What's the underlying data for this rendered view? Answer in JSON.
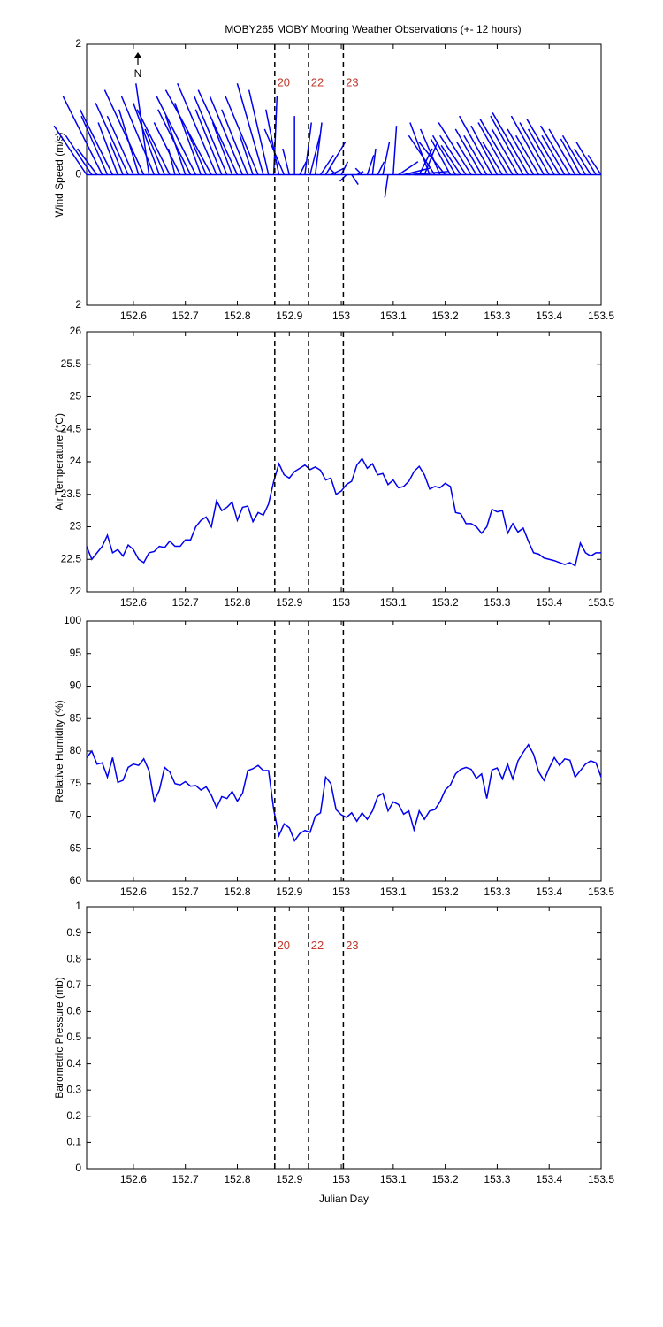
{
  "chart_data": [
    {
      "type": "stick",
      "title": "MOBY265 MOBY Mooring Weather Observations (+- 12 hours)",
      "ylabel": "Wind Speed (m/s)",
      "annotation": "N",
      "color": "#0000ee",
      "xlim": [
        152.51,
        153.5
      ],
      "xticks": [
        152.6,
        152.7,
        152.8,
        152.9,
        153,
        153.1,
        153.2,
        153.3,
        153.4,
        153.5
      ],
      "ylim": [
        -2,
        2
      ],
      "yticks": [
        {
          "value": -2,
          "label": "2"
        },
        0,
        2
      ],
      "vlines": [
        152.872,
        152.937,
        153.004
      ],
      "vline_labels": [
        "20",
        "22",
        "23"
      ],
      "x": [
        152.51,
        152.52,
        152.53,
        152.54,
        152.55,
        152.56,
        152.57,
        152.58,
        152.59,
        152.6,
        152.61,
        152.62,
        152.63,
        152.64,
        152.65,
        152.66,
        152.67,
        152.68,
        152.69,
        152.7,
        152.71,
        152.72,
        152.73,
        152.74,
        152.75,
        152.76,
        152.77,
        152.78,
        152.79,
        152.8,
        152.81,
        152.82,
        152.83,
        152.84,
        152.85,
        152.86,
        152.87,
        152.88,
        152.89,
        152.9,
        152.91,
        152.92,
        152.93,
        152.94,
        152.95,
        152.96,
        152.97,
        152.98,
        152.99,
        153,
        153.01,
        153.02,
        153.03,
        153.04,
        153.05,
        153.06,
        153.07,
        153.08,
        153.09,
        153.1,
        153.11,
        153.12,
        153.13,
        153.14,
        153.15,
        153.16,
        153.17,
        153.18,
        153.19,
        153.2,
        153.21,
        153.22,
        153.23,
        153.24,
        153.25,
        153.26,
        153.27,
        153.28,
        153.29,
        153.3,
        153.31,
        153.32,
        153.33,
        153.34,
        153.35,
        153.36,
        153.37,
        153.38,
        153.39,
        153.4,
        153.41,
        153.42,
        153.43,
        153.44,
        153.45,
        153.46,
        153.47,
        153.48,
        153.49,
        153.5
      ],
      "u": [
        -0.5,
        -0.4,
        -0.3,
        -0.6,
        -0.4,
        -0.5,
        -0.3,
        -0.2,
        -0.5,
        -0.4,
        -0.3,
        -0.6,
        -0.2,
        -0.5,
        -0.4,
        -0.3,
        -0.5,
        -0.1,
        -0.4,
        -0.3,
        -0.5,
        -0.6,
        -0.4,
        -0.3,
        -0.7,
        -0.6,
        -0.4,
        -0.5,
        -0.3,
        -0.6,
        -0.5,
        -0.4,
        -0.2,
        -0.5,
        -0.4,
        -0.3,
        0.05,
        -0.2,
        -0.3,
        -0.1,
        0.0,
        0.1,
        0.1,
        0.15,
        0.1,
        0.2,
        0.3,
        0.2,
        -0.1,
        0.1,
        -0.1,
        0.1,
        0.1,
        -0.1,
        0.1,
        0.05,
        0.1,
        0.1,
        -0.05,
        0.05,
        0.3,
        0.4,
        0.6,
        0.7,
        0.2,
        0.2,
        -0.3,
        -0.4,
        -0.3,
        -0.4,
        -0.3,
        -0.35,
        -0.3,
        -0.4,
        -0.5,
        -0.3,
        -0.4,
        -0.35,
        -0.5,
        -0.4,
        -0.3,
        -0.45,
        -0.5,
        -0.4,
        -0.5,
        -0.55,
        -0.4,
        -0.35,
        -0.5,
        -0.45,
        -0.4,
        -0.5,
        -0.35,
        -0.45,
        -0.4,
        -0.3,
        -0.35,
        -0.25,
        -0.3,
        -0.2
      ],
      "v": [
        0.75,
        0.6,
        0.4,
        1.2,
        0.9,
        1.0,
        0.8,
        0.5,
        1.1,
        0.9,
        1.0,
        1.3,
        1.4,
        1.2,
        1.1,
        0.7,
        1.0,
        0.4,
        0.8,
        0.9,
        1.0,
        1.2,
        1.1,
        0.7,
        1.3,
        1.4,
        1.0,
        1.2,
        0.8,
        1.3,
        1.2,
        1.0,
        0.6,
        1.2,
        1.4,
        1.3,
        1.2,
        1.0,
        0.7,
        0.4,
        0.9,
        0.2,
        0.8,
        0.6,
        0.8,
        0.3,
        0.5,
        0.1,
        0.1,
        0.2,
        -0.1,
        -0.15,
        0.05,
        0.1,
        0.3,
        0.4,
        0.2,
        0.5,
        -0.35,
        0.75,
        0.2,
        0.1,
        0.05,
        0.0,
        0.4,
        0.5,
        0.8,
        0.6,
        0.7,
        0.5,
        0.55,
        0.6,
        0.45,
        0.6,
        0.8,
        0.5,
        0.7,
        0.6,
        0.9,
        0.75,
        0.5,
        0.8,
        0.85,
        0.7,
        0.9,
        0.95,
        0.7,
        0.6,
        0.9,
        0.8,
        0.7,
        0.85,
        0.6,
        0.75,
        0.7,
        0.55,
        0.6,
        0.4,
        0.5,
        0.3
      ]
    },
    {
      "type": "line",
      "ylabel": "Air Temperature (°C)",
      "color": "#0000ee",
      "xlim": [
        152.51,
        153.5
      ],
      "xticks": [
        152.6,
        152.7,
        152.8,
        152.9,
        153,
        153.1,
        153.2,
        153.3,
        153.4,
        153.5
      ],
      "ylim": [
        22,
        26
      ],
      "yticks": [
        22,
        22.5,
        23,
        23.5,
        24,
        24.5,
        25,
        25.5,
        26
      ],
      "vlines": [
        152.872,
        152.937,
        153.004
      ],
      "x": [
        152.51,
        152.52,
        152.53,
        152.54,
        152.55,
        152.56,
        152.57,
        152.58,
        152.59,
        152.6,
        152.61,
        152.62,
        152.63,
        152.64,
        152.65,
        152.66,
        152.67,
        152.68,
        152.69,
        152.7,
        152.71,
        152.72,
        152.73,
        152.74,
        152.75,
        152.76,
        152.77,
        152.78,
        152.79,
        152.8,
        152.81,
        152.82,
        152.83,
        152.84,
        152.85,
        152.86,
        152.87,
        152.88,
        152.89,
        152.9,
        152.91,
        152.92,
        152.93,
        152.94,
        152.95,
        152.96,
        152.97,
        152.98,
        152.99,
        153,
        153.01,
        153.02,
        153.03,
        153.04,
        153.05,
        153.06,
        153.07,
        153.08,
        153.09,
        153.1,
        153.11,
        153.12,
        153.13,
        153.14,
        153.15,
        153.16,
        153.17,
        153.18,
        153.19,
        153.2,
        153.21,
        153.22,
        153.23,
        153.24,
        153.25,
        153.26,
        153.27,
        153.28,
        153.29,
        153.3,
        153.31,
        153.32,
        153.33,
        153.34,
        153.35,
        153.36,
        153.37,
        153.38,
        153.39,
        153.4,
        153.41,
        153.42,
        153.43,
        153.44,
        153.45,
        153.46,
        153.47,
        153.48,
        153.49,
        153.5
      ],
      "values": [
        22.7,
        22.5,
        22.6,
        22.7,
        22.87,
        22.6,
        22.65,
        22.55,
        22.72,
        22.65,
        22.5,
        22.45,
        22.6,
        22.62,
        22.7,
        22.68,
        22.78,
        22.7,
        22.7,
        22.8,
        22.8,
        23.0,
        23.1,
        23.15,
        23.0,
        23.4,
        23.25,
        23.3,
        23.38,
        23.1,
        23.3,
        23.32,
        23.08,
        23.22,
        23.18,
        23.35,
        23.7,
        23.97,
        23.8,
        23.75,
        23.85,
        23.9,
        23.95,
        23.88,
        23.92,
        23.87,
        23.72,
        23.75,
        23.5,
        23.55,
        23.65,
        23.7,
        23.95,
        24.05,
        23.9,
        23.97,
        23.8,
        23.82,
        23.65,
        23.72,
        23.6,
        23.62,
        23.7,
        23.85,
        23.93,
        23.8,
        23.58,
        23.62,
        23.6,
        23.67,
        23.62,
        23.22,
        23.2,
        23.05,
        23.05,
        23.0,
        22.9,
        23.0,
        23.27,
        23.23,
        23.25,
        22.9,
        23.05,
        22.92,
        22.98,
        22.78,
        22.6,
        22.58,
        22.52,
        22.5,
        22.48,
        22.45,
        22.42,
        22.45,
        22.4,
        22.75,
        22.6,
        22.55,
        22.6,
        22.6
      ]
    },
    {
      "type": "line",
      "ylabel": "Relative Humidity (%)",
      "color": "#0000ee",
      "xlim": [
        152.51,
        153.5
      ],
      "xticks": [
        152.6,
        152.7,
        152.8,
        152.9,
        153,
        153.1,
        153.2,
        153.3,
        153.4,
        153.5
      ],
      "ylim": [
        60,
        100
      ],
      "yticks": [
        60,
        65,
        70,
        75,
        80,
        85,
        90,
        95,
        100
      ],
      "vlines": [
        152.872,
        152.937,
        153.004
      ],
      "x": [
        152.51,
        152.52,
        152.53,
        152.54,
        152.55,
        152.56,
        152.57,
        152.58,
        152.59,
        152.6,
        152.61,
        152.62,
        152.63,
        152.64,
        152.65,
        152.66,
        152.67,
        152.68,
        152.69,
        152.7,
        152.71,
        152.72,
        152.73,
        152.74,
        152.75,
        152.76,
        152.77,
        152.78,
        152.79,
        152.8,
        152.81,
        152.82,
        152.83,
        152.84,
        152.85,
        152.86,
        152.87,
        152.88,
        152.89,
        152.9,
        152.91,
        152.92,
        152.93,
        152.94,
        152.95,
        152.96,
        152.97,
        152.98,
        152.99,
        153,
        153.01,
        153.02,
        153.03,
        153.04,
        153.05,
        153.06,
        153.07,
        153.08,
        153.09,
        153.1,
        153.11,
        153.12,
        153.13,
        153.14,
        153.15,
        153.16,
        153.17,
        153.18,
        153.19,
        153.2,
        153.21,
        153.22,
        153.23,
        153.24,
        153.25,
        153.26,
        153.27,
        153.28,
        153.29,
        153.3,
        153.31,
        153.32,
        153.33,
        153.34,
        153.35,
        153.36,
        153.37,
        153.38,
        153.39,
        153.4,
        153.41,
        153.42,
        153.43,
        153.44,
        153.45,
        153.46,
        153.47,
        153.48,
        153.49,
        153.5
      ],
      "values": [
        79,
        80,
        78,
        78.2,
        76,
        79,
        75.2,
        75.5,
        77.5,
        78,
        77.8,
        78.8,
        77,
        72.3,
        74,
        77.5,
        76.8,
        75,
        74.8,
        75.3,
        74.6,
        74.7,
        74,
        74.5,
        73.2,
        71.3,
        73,
        72.7,
        73.8,
        72.3,
        73.5,
        77,
        77.3,
        77.8,
        77,
        77,
        71,
        67,
        68.8,
        68.2,
        66.2,
        67.3,
        67.8,
        67.5,
        70,
        70.5,
        76,
        75,
        71,
        70.2,
        69.8,
        70.5,
        69.2,
        70.5,
        69.5,
        70.8,
        73,
        73.5,
        70.8,
        72.2,
        71.8,
        70.3,
        70.8,
        67.9,
        70.8,
        69.5,
        70.8,
        71,
        72.2,
        74,
        74.8,
        76.5,
        77.2,
        77.5,
        77.2,
        75.8,
        76.5,
        72.7,
        77.1,
        77.4,
        75.7,
        78,
        75.7,
        78.5,
        79.8,
        81,
        79.5,
        76.8,
        75.5,
        77.4,
        79,
        77.8,
        78.8,
        78.6,
        76,
        77,
        78,
        78.5,
        78.2,
        76
      ]
    },
    {
      "type": "line",
      "ylabel": "Barometric Pressure (mb)",
      "xlabel": "Julian Day",
      "xlim": [
        152.51,
        153.5
      ],
      "xticks": [
        152.6,
        152.7,
        152.8,
        152.9,
        153,
        153.1,
        153.2,
        153.3,
        153.4,
        153.5
      ],
      "ylim": [
        0,
        1
      ],
      "yticks": [
        0,
        0.1,
        0.2,
        0.3,
        0.4,
        0.5,
        0.6,
        0.7,
        0.8,
        0.9,
        1
      ],
      "vlines": [
        152.872,
        152.937,
        153.004
      ],
      "vline_labels": [
        "20",
        "22",
        "23"
      ]
    }
  ]
}
